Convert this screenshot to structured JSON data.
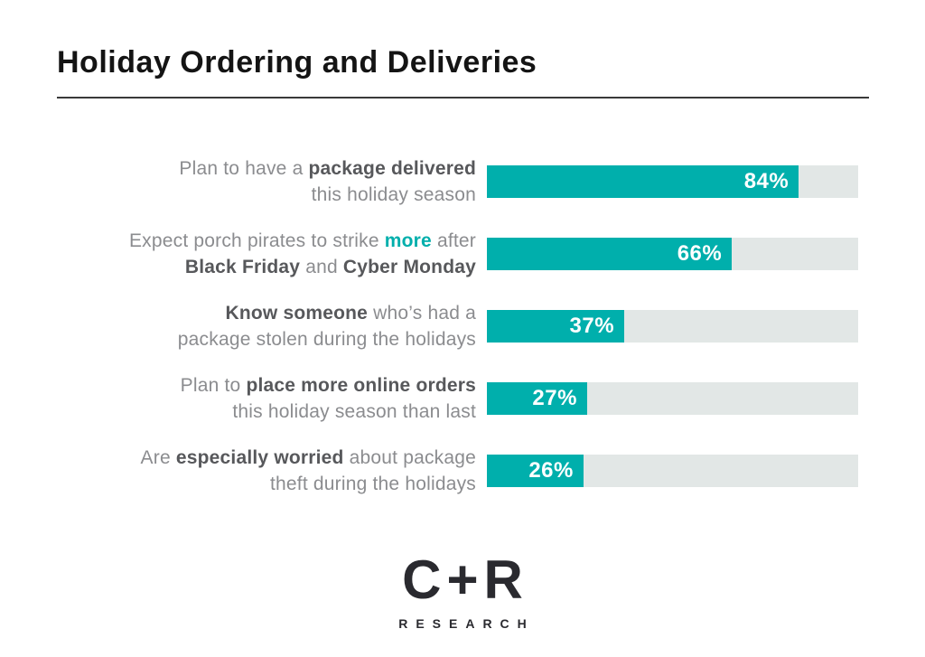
{
  "header": {
    "title": "Holiday Ordering and Deliveries"
  },
  "colors": {
    "teal": "#00AFAC",
    "track": "#E2E7E6",
    "label_gray": "#8B8C8F",
    "label_dark": "#57585B",
    "title": "#141414",
    "rule": "#3a3a3a",
    "logo": "#2A2A2F"
  },
  "chart_data": {
    "type": "bar",
    "orientation": "horizontal",
    "title": "Holiday Ordering and Deliveries",
    "categories": [
      "Plan to have a package delivered this holiday season",
      "Expect porch pirates to strike more after Black Friday and Cyber Monday",
      "Know someone who’s had a package stolen during the holidays",
      "Plan to place more online orders this holiday season than last",
      "Are especially worried about package theft during the holidays"
    ],
    "values": [
      84,
      66,
      37,
      27,
      26
    ],
    "value_labels": [
      "84%",
      "66%",
      "37%",
      "27%",
      "26%"
    ],
    "xlim": [
      0,
      100
    ],
    "grid": false,
    "legend": false,
    "bar_color": "#00AFAC",
    "track_color": "#E2E7E6",
    "value_label_position": "inside-end"
  },
  "rows": [
    {
      "value": 84,
      "value_label": "84%",
      "label_lines": [
        [
          {
            "t": "Plan to have a ",
            "s": "n"
          },
          {
            "t": "package delivered",
            "s": "b"
          }
        ],
        [
          {
            "t": "this holiday season",
            "s": "n"
          }
        ]
      ]
    },
    {
      "value": 66,
      "value_label": "66%",
      "label_lines": [
        [
          {
            "t": "Expect porch pirates to strike ",
            "s": "n"
          },
          {
            "t": "more",
            "s": "t"
          },
          {
            "t": " after",
            "s": "n"
          }
        ],
        [
          {
            "t": "Black Friday",
            "s": "b"
          },
          {
            "t": " and ",
            "s": "n"
          },
          {
            "t": "Cyber Monday",
            "s": "b"
          }
        ]
      ]
    },
    {
      "value": 37,
      "value_label": "37%",
      "label_lines": [
        [
          {
            "t": "Know someone",
            "s": "b"
          },
          {
            "t": " who’s had a",
            "s": "n"
          }
        ],
        [
          {
            "t": "package stolen during the holidays",
            "s": "n"
          }
        ]
      ]
    },
    {
      "value": 27,
      "value_label": "27%",
      "label_lines": [
        [
          {
            "t": "Plan to ",
            "s": "n"
          },
          {
            "t": "place more online orders",
            "s": "b"
          }
        ],
        [
          {
            "t": "this holiday season than last",
            "s": "n"
          }
        ]
      ]
    },
    {
      "value": 26,
      "value_label": "26%",
      "label_lines": [
        [
          {
            "t": "Are ",
            "s": "n"
          },
          {
            "t": "especially worried",
            "s": "b"
          },
          {
            "t": " about package",
            "s": "n"
          }
        ],
        [
          {
            "t": "theft during the holidays",
            "s": "n"
          }
        ]
      ]
    }
  ],
  "logo": {
    "wordmark": "C+R",
    "subtext": "RESEARCH"
  }
}
